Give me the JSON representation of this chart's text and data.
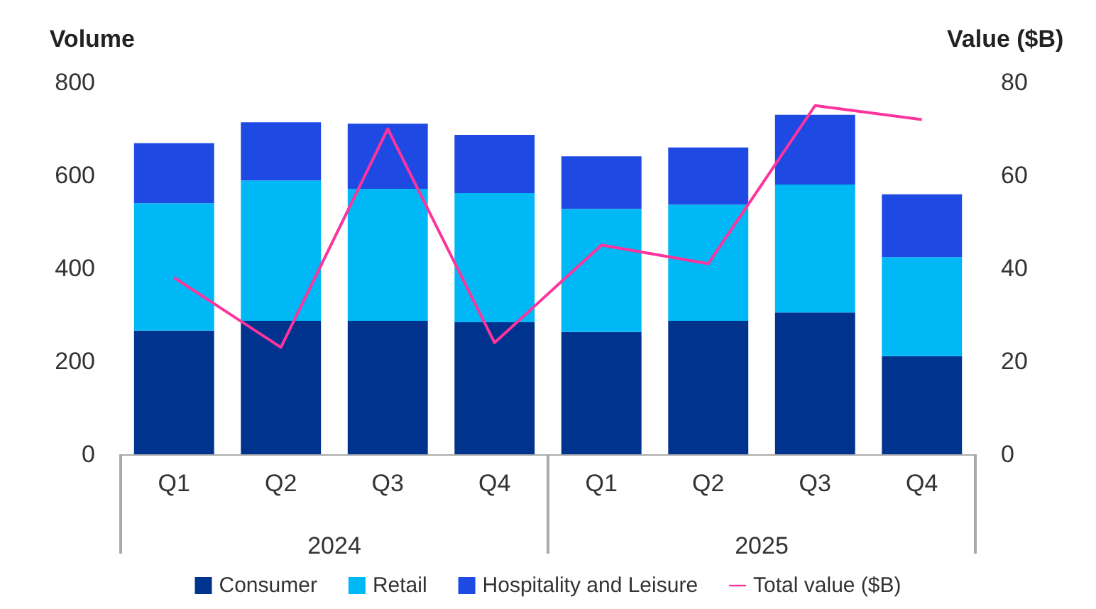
{
  "chart_data": {
    "type": "bar",
    "stacked": true,
    "ylabel": "Volume",
    "y2label": "Value ($B)",
    "categories": [
      "Q1",
      "Q2",
      "Q3",
      "Q4",
      "Q1",
      "Q2",
      "Q3",
      "Q4"
    ],
    "annotations": [
      "2024",
      "2025"
    ],
    "series": [
      {
        "name": "Consumer",
        "color": "#00338d",
        "values": [
          266,
          287,
          287,
          284,
          263,
          287,
          305,
          211
        ]
      },
      {
        "name": "Retail",
        "color": "#00b8f5",
        "values": [
          274,
          302,
          284,
          278,
          265,
          250,
          275,
          213
        ]
      },
      {
        "name": "Hospitality and Leisure",
        "color": "#1e49e2",
        "values": [
          129,
          125,
          140,
          125,
          113,
          123,
          150,
          135
        ]
      },
      {
        "name": "Total value ($B)",
        "type": "line",
        "axis": "y2",
        "color": "#fd349c",
        "values": [
          38,
          23,
          70,
          24,
          45,
          41,
          75,
          72
        ]
      }
    ],
    "ylim": [
      0,
      800
    ],
    "yticks": [
      0,
      200,
      400,
      600,
      800
    ],
    "y2lim": [
      0,
      80
    ],
    "y2ticks": [
      0,
      20,
      40,
      60,
      80
    ],
    "grid": false,
    "legend": "bottom",
    "line_style": "solid"
  }
}
